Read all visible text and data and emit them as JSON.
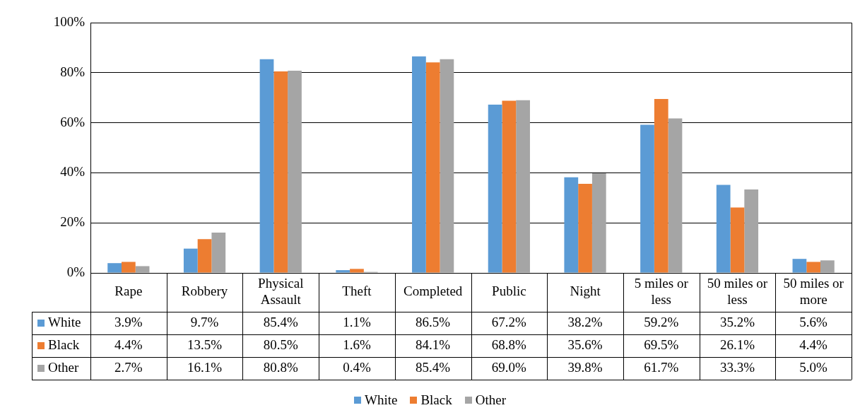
{
  "chart_data": {
    "type": "bar",
    "categories": [
      "Rape",
      "Robbery",
      "Physical Assault",
      "Theft",
      "Completed",
      "Public",
      "Night",
      "5 miles or less",
      "50 miles or less",
      "50 miles or more"
    ],
    "series": [
      {
        "name": "White",
        "color": "#5b9bd5",
        "values": [
          3.9,
          9.7,
          85.4,
          1.1,
          86.5,
          67.2,
          38.2,
          59.2,
          35.2,
          5.6
        ],
        "value_labels": [
          "3.9%",
          "9.7%",
          "85.4%",
          "1.1%",
          "86.5%",
          "67.2%",
          "38.2%",
          "59.2%",
          "35.2%",
          "5.6%"
        ]
      },
      {
        "name": "Black",
        "color": "#ed7d31",
        "values": [
          4.4,
          13.5,
          80.5,
          1.6,
          84.1,
          68.8,
          35.6,
          69.5,
          26.1,
          4.4
        ],
        "value_labels": [
          "4.4%",
          "13.5%",
          "80.5%",
          "1.6%",
          "84.1%",
          "68.8%",
          "35.6%",
          "69.5%",
          "26.1%",
          "4.4%"
        ]
      },
      {
        "name": "Other",
        "color": "#a5a5a5",
        "values": [
          2.7,
          16.1,
          80.8,
          0.4,
          85.4,
          69.0,
          39.8,
          61.7,
          33.3,
          5.0
        ],
        "value_labels": [
          "2.7%",
          "16.1%",
          "80.8%",
          "0.4%",
          "85.4%",
          "69.0%",
          "39.8%",
          "61.7%",
          "33.3%",
          "5.0%"
        ]
      }
    ],
    "ylim": [
      0,
      100
    ],
    "yticks": [
      {
        "value": 0,
        "label": "0%"
      },
      {
        "value": 20,
        "label": "20%"
      },
      {
        "value": 40,
        "label": "40%"
      },
      {
        "value": 60,
        "label": "60%"
      },
      {
        "value": 80,
        "label": "80%"
      },
      {
        "value": 100,
        "label": "100%"
      }
    ],
    "grid": "y",
    "legend": "bottom"
  }
}
